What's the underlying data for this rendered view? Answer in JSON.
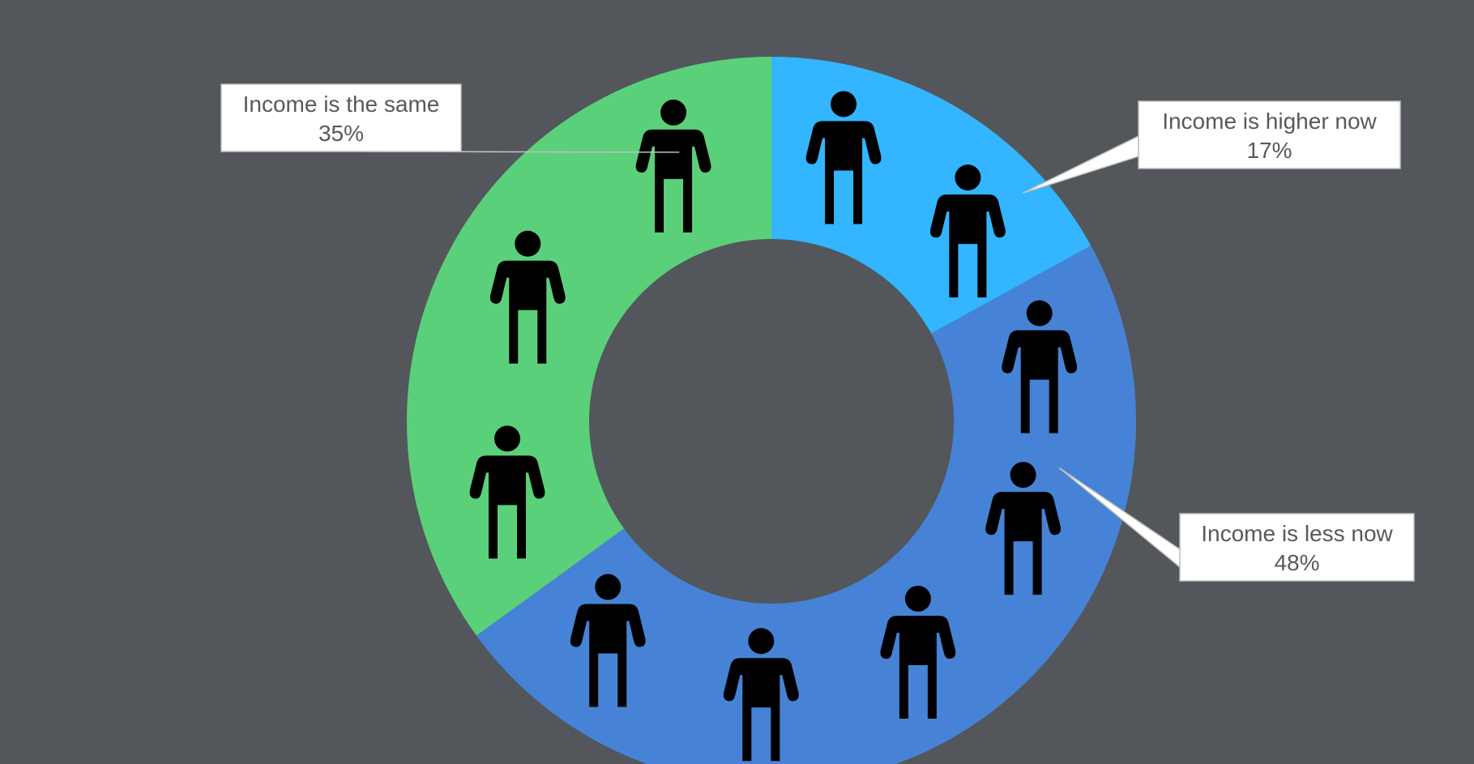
{
  "chart_data": {
    "type": "pie",
    "variant": "donut",
    "title": "",
    "slices": [
      {
        "label": "Income is higher now",
        "value": 17,
        "display": "17%",
        "color": "#33b5ff",
        "icons": 2
      },
      {
        "label": "Income is less now",
        "value": 48,
        "display": "48%",
        "color": "#4683d6",
        "icons": 5
      },
      {
        "label": "Income is the same",
        "value": 35,
        "display": "35%",
        "color": "#5bd07a",
        "icons": 3
      }
    ],
    "legend": "none",
    "icon": "person-icon",
    "icon_color": "#000000",
    "background": "#53565a",
    "label_box_color": "#ffffff"
  }
}
